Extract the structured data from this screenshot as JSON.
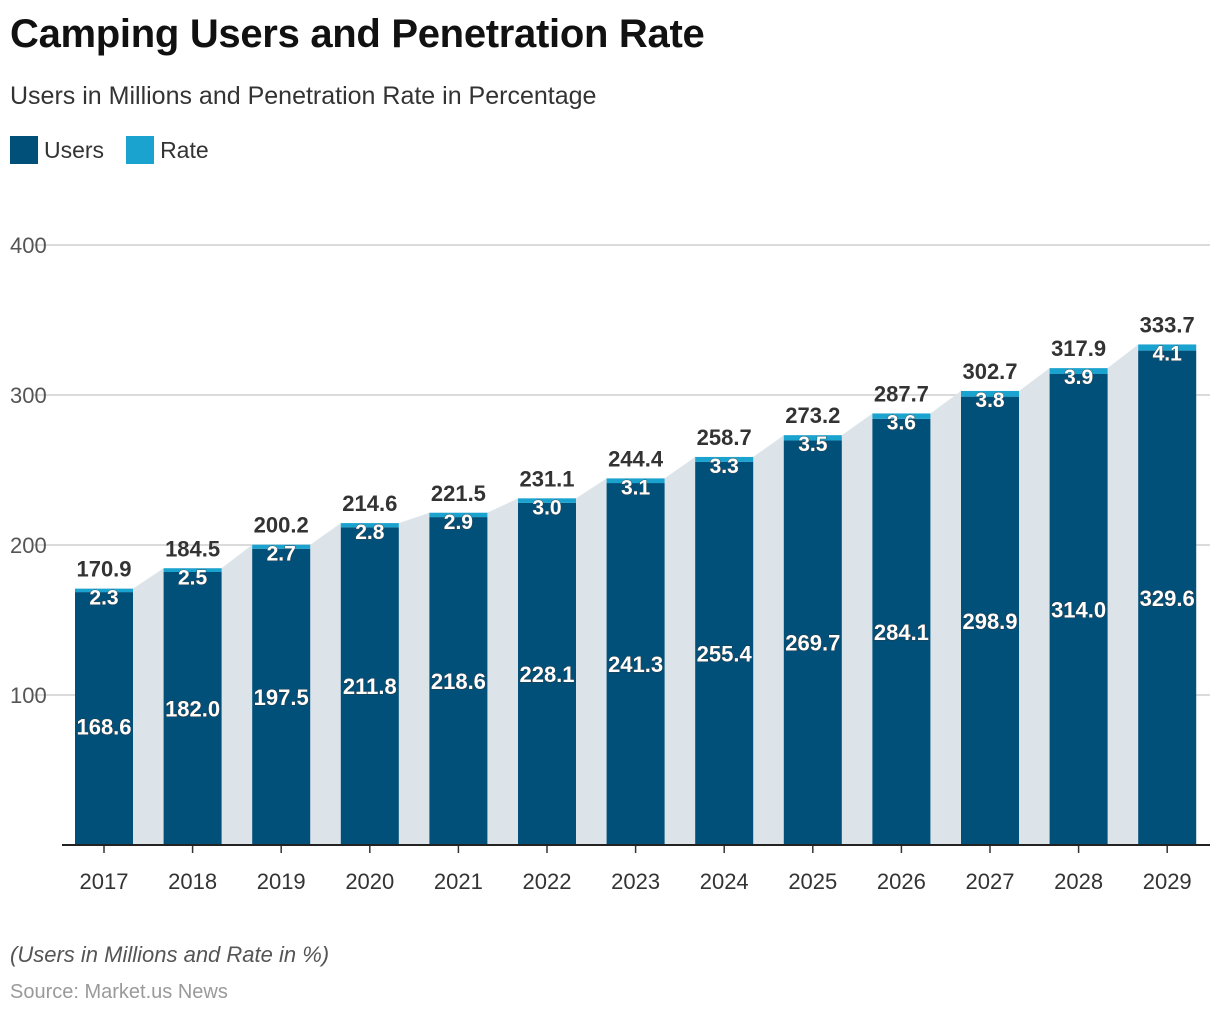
{
  "header": {
    "title": "Camping Users and Penetration Rate",
    "subtitle": "Users in Millions and Penetration Rate in Percentage"
  },
  "legend": {
    "users_label": "Users",
    "rate_label": "Rate"
  },
  "footer": {
    "note": "(Users in Millions and Rate in %)",
    "source": "Source: Market.us News"
  },
  "colors": {
    "users": "#00507a",
    "rate": "#1ba3cf",
    "area": "#dce4ea",
    "grid": "#cfcfcf"
  },
  "chart_data": {
    "type": "bar",
    "stacked": true,
    "title": "Camping Users and Penetration Rate",
    "subtitle": "Users in Millions and Penetration Rate in Percentage",
    "categories": [
      "2017",
      "2018",
      "2019",
      "2020",
      "2021",
      "2022",
      "2023",
      "2024",
      "2025",
      "2026",
      "2027",
      "2028",
      "2029"
    ],
    "series": [
      {
        "name": "Users",
        "values": [
          168.6,
          182.0,
          197.5,
          211.8,
          218.6,
          228.1,
          241.3,
          255.4,
          269.7,
          284.1,
          298.9,
          314.0,
          329.6
        ]
      },
      {
        "name": "Rate",
        "values": [
          2.3,
          2.5,
          2.7,
          2.8,
          2.9,
          3.0,
          3.1,
          3.3,
          3.5,
          3.6,
          3.8,
          3.9,
          4.1
        ]
      }
    ],
    "totals": [
      170.9,
      184.5,
      200.2,
      214.6,
      221.5,
      231.1,
      244.4,
      258.7,
      273.2,
      287.7,
      302.7,
      317.9,
      333.7
    ],
    "y_ticks": [
      100,
      200,
      300,
      400
    ],
    "ylim": [
      0,
      400
    ],
    "grid": true,
    "legend_position": "top-left"
  }
}
